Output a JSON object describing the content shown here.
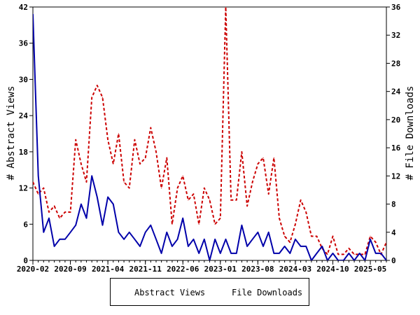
{
  "chart_data": {
    "type": "line",
    "x": [
      "2020-02",
      "2020-03",
      "2020-04",
      "2020-05",
      "2020-06",
      "2020-07",
      "2020-08",
      "2020-09",
      "2020-10",
      "2020-11",
      "2020-12",
      "2021-01",
      "2021-02",
      "2021-03",
      "2021-04",
      "2021-05",
      "2021-06",
      "2021-07",
      "2021-08",
      "2021-09",
      "2021-10",
      "2021-11",
      "2021-12",
      "2022-01",
      "2022-02",
      "2022-03",
      "2022-04",
      "2022-05",
      "2022-06",
      "2022-07",
      "2022-08",
      "2022-09",
      "2022-10",
      "2022-11",
      "2022-12",
      "2023-01",
      "2023-02",
      "2023-03",
      "2023-04",
      "2023-05",
      "2023-06",
      "2023-07",
      "2023-08",
      "2023-09",
      "2023-10",
      "2023-11",
      "2023-12",
      "2024-01",
      "2024-02",
      "2024-03",
      "2024-04",
      "2024-05",
      "2024-06",
      "2024-07",
      "2024-08",
      "2024-09",
      "2024-10",
      "2024-11",
      "2024-12",
      "2025-01",
      "2025-02",
      "2025-03",
      "2025-04",
      "2025-05",
      "2025-06",
      "2025-07",
      "2025-08"
    ],
    "x_ticks": [
      "2020-02",
      "2020-09",
      "2021-04",
      "2021-11",
      "2022-06",
      "2023-01",
      "2023-08",
      "2024-03",
      "2024-10",
      "2025-05"
    ],
    "series": [
      {
        "name": "Abstract Views",
        "axis": "left",
        "color": "#cc0000",
        "style": "dashed",
        "values": [
          13,
          11,
          12,
          8,
          9,
          7,
          8,
          8,
          20,
          16,
          13,
          27,
          29,
          27,
          20,
          16,
          21,
          13,
          12,
          20,
          16,
          17,
          22,
          18,
          12,
          17,
          6,
          12,
          14,
          10,
          11,
          6,
          12,
          10,
          6,
          7,
          42,
          10,
          10,
          18,
          9,
          13,
          16,
          17,
          11,
          17,
          7,
          4,
          3,
          6,
          10,
          8,
          4,
          4,
          2,
          1,
          4,
          1,
          1,
          2,
          1,
          1,
          1,
          4,
          3,
          1,
          3
        ]
      },
      {
        "name": "File Downloads",
        "axis": "right",
        "color": "#0000aa",
        "style": "solid",
        "values": [
          35,
          12,
          4,
          6,
          2,
          3,
          3,
          4,
          5,
          8,
          6,
          12,
          9,
          5,
          9,
          8,
          4,
          3,
          4,
          3,
          2,
          4,
          5,
          3,
          1,
          4,
          2,
          3,
          6,
          2,
          3,
          1,
          3,
          0,
          3,
          1,
          3,
          1,
          1,
          5,
          2,
          3,
          4,
          2,
          4,
          1,
          1,
          2,
          1,
          3,
          2,
          2,
          0,
          1,
          2,
          0,
          1,
          0,
          0,
          1,
          0,
          1,
          0,
          3,
          1,
          1,
          0
        ]
      }
    ],
    "y_left": {
      "label": "# Abstract Views",
      "min": 0,
      "max": 42,
      "ticks": [
        0,
        6,
        12,
        18,
        24,
        30,
        36,
        42
      ]
    },
    "y_right": {
      "label": "# File Downloads",
      "min": 0,
      "max": 36,
      "ticks": [
        0,
        4,
        8,
        12,
        16,
        20,
        24,
        28,
        32,
        36
      ]
    },
    "grid": false,
    "legend_position": "bottom"
  },
  "legend": {
    "views_label": "Abstract Views",
    "downloads_label": "File Downloads"
  }
}
